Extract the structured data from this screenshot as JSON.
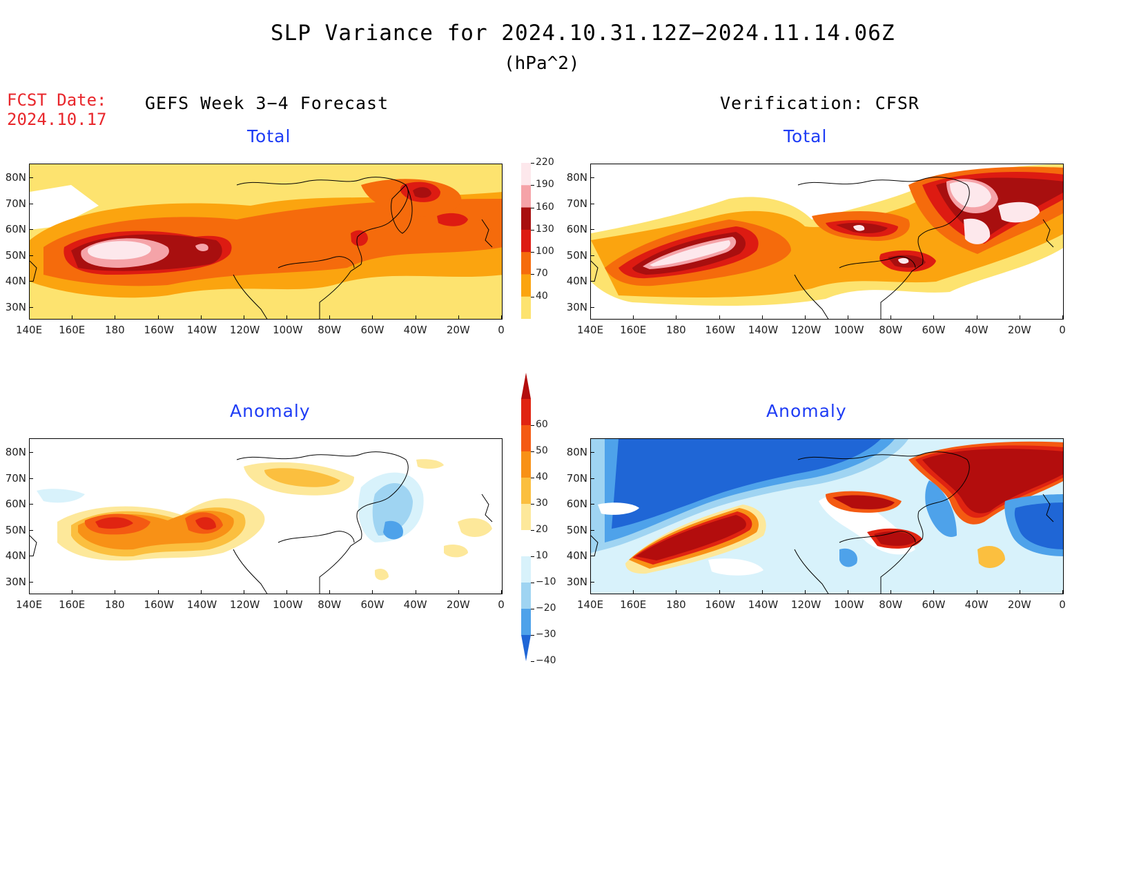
{
  "title": "SLP Variance for 2024.10.31.12Z−2024.11.14.06Z",
  "units": "(hPa^2)",
  "fcst_date_label": "FCST Date:",
  "fcst_date": "2024.10.17",
  "left_header": "GEFS Week 3−4 Forecast",
  "right_header": "Verification: CFSR",
  "panels": [
    {
      "title": "Total"
    },
    {
      "title": "Total"
    },
    {
      "title": "Anomaly"
    },
    {
      "title": "Anomaly"
    }
  ],
  "lon_labels": [
    "140E",
    "160E",
    "180",
    "160W",
    "140W",
    "120W",
    "100W",
    "80W",
    "60W",
    "40W",
    "20W",
    "0"
  ],
  "lat_labels_top": [
    "80N",
    "70N",
    "60N",
    "50N",
    "40N",
    "30N"
  ],
  "lat_labels_bottom": [
    "80N",
    "70N",
    "60N",
    "50N",
    "40N",
    "30N"
  ],
  "total_colorbar": {
    "levels": [
      "220",
      "190",
      "160",
      "130",
      "100",
      "70",
      "40"
    ],
    "colors": [
      "#fde8ec",
      "#f5a3a8",
      "#a80f0f",
      "#dd1b12",
      "#f56b0c",
      "#fba40f",
      "#fde36f"
    ]
  },
  "anomaly_colorbar": {
    "levels": [
      "60",
      "50",
      "40",
      "30",
      "20",
      "10",
      "−10",
      "−20",
      "−30",
      "−40"
    ],
    "colors": [
      "#b30d0d",
      "#e02411",
      "#f45a12",
      "#f89116",
      "#fbbf3f",
      "#fde89a",
      "#ffffff",
      "#d8f2fb",
      "#9fd4f2",
      "#4ea2ea",
      "#1f66d6"
    ]
  }
}
